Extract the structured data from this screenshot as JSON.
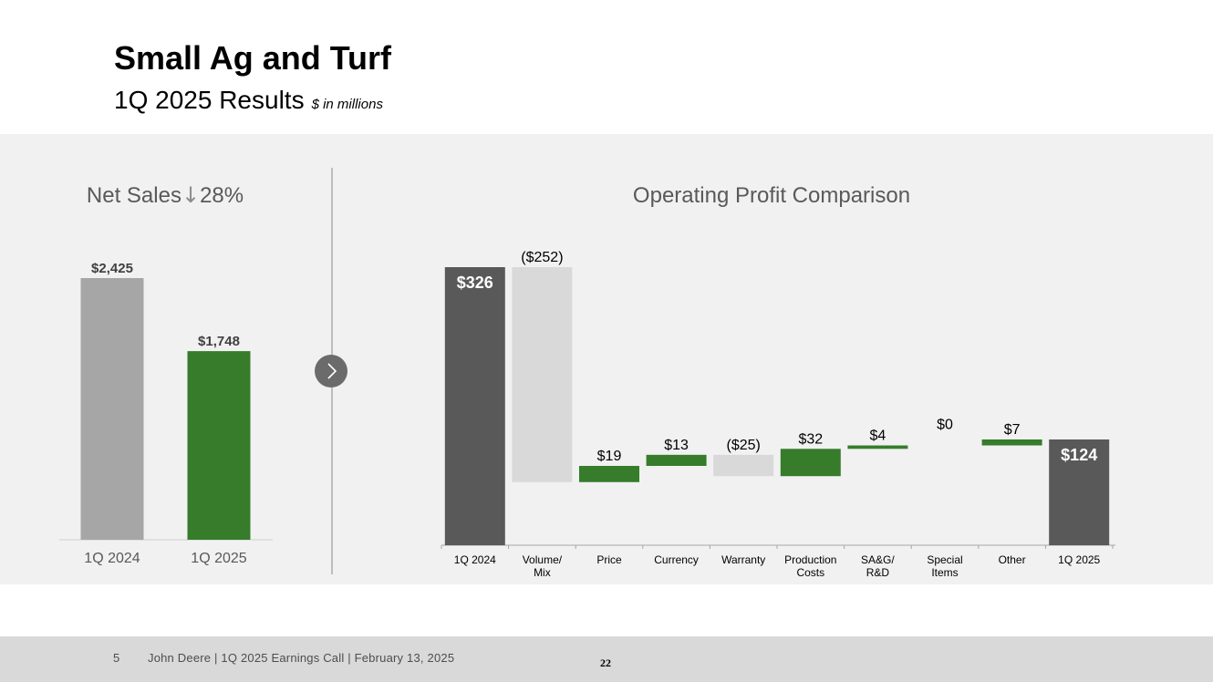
{
  "header": {
    "title": "Small Ag and Turf",
    "subtitle": "1Q 2025 Results",
    "units": "$ in millions"
  },
  "colors": {
    "green": "#367c2b",
    "dark_gray": "#595959",
    "mid_gray": "#a6a6a6",
    "light_gray": "#d9d9d9",
    "panel": "#f1f1f1"
  },
  "icons": {
    "arrow": "down-arrow-icon",
    "chevron": "chevron-right-icon"
  },
  "chart_data": [
    {
      "type": "bar",
      "title": "Net Sales",
      "change_text": "28%",
      "categories": [
        "1Q 2024",
        "1Q 2025"
      ],
      "values": [
        2425,
        1748
      ],
      "value_labels": [
        "$2,425",
        "$1,748"
      ],
      "bar_colors": [
        "#a6a6a6",
        "#367c2b"
      ]
    },
    {
      "type": "waterfall",
      "title": "Operating Profit Comparison",
      "categories": [
        "1Q 2024",
        "Volume/ Mix",
        "Price",
        "Currency",
        "Warranty",
        "Production Costs",
        "SA&G/ R&D",
        "Special Items",
        "Other",
        "1Q 2025"
      ],
      "category_lines": [
        [
          "1Q 2024"
        ],
        [
          "Volume/",
          "Mix"
        ],
        [
          "Price"
        ],
        [
          "Currency"
        ],
        [
          "Warranty"
        ],
        [
          "Production",
          "Costs"
        ],
        [
          "SA&G/",
          "R&D"
        ],
        [
          "Special",
          "Items"
        ],
        [
          "Other"
        ],
        [
          "1Q 2025"
        ]
      ],
      "kinds": [
        "total",
        "delta",
        "delta",
        "delta",
        "delta",
        "delta",
        "delta",
        "delta",
        "delta",
        "total"
      ],
      "values": [
        326,
        -252,
        19,
        13,
        -25,
        32,
        4,
        0,
        7,
        124
      ],
      "value_labels": [
        "$326",
        "($252)",
        "$19",
        "$13",
        "($25)",
        "$32",
        "$4",
        "$0",
        "$7",
        "$124"
      ]
    }
  ],
  "footer": {
    "page_number": "5",
    "text": "John Deere | 1Q 2025 Earnings Call | February 13, 2025",
    "center_number": "22"
  }
}
